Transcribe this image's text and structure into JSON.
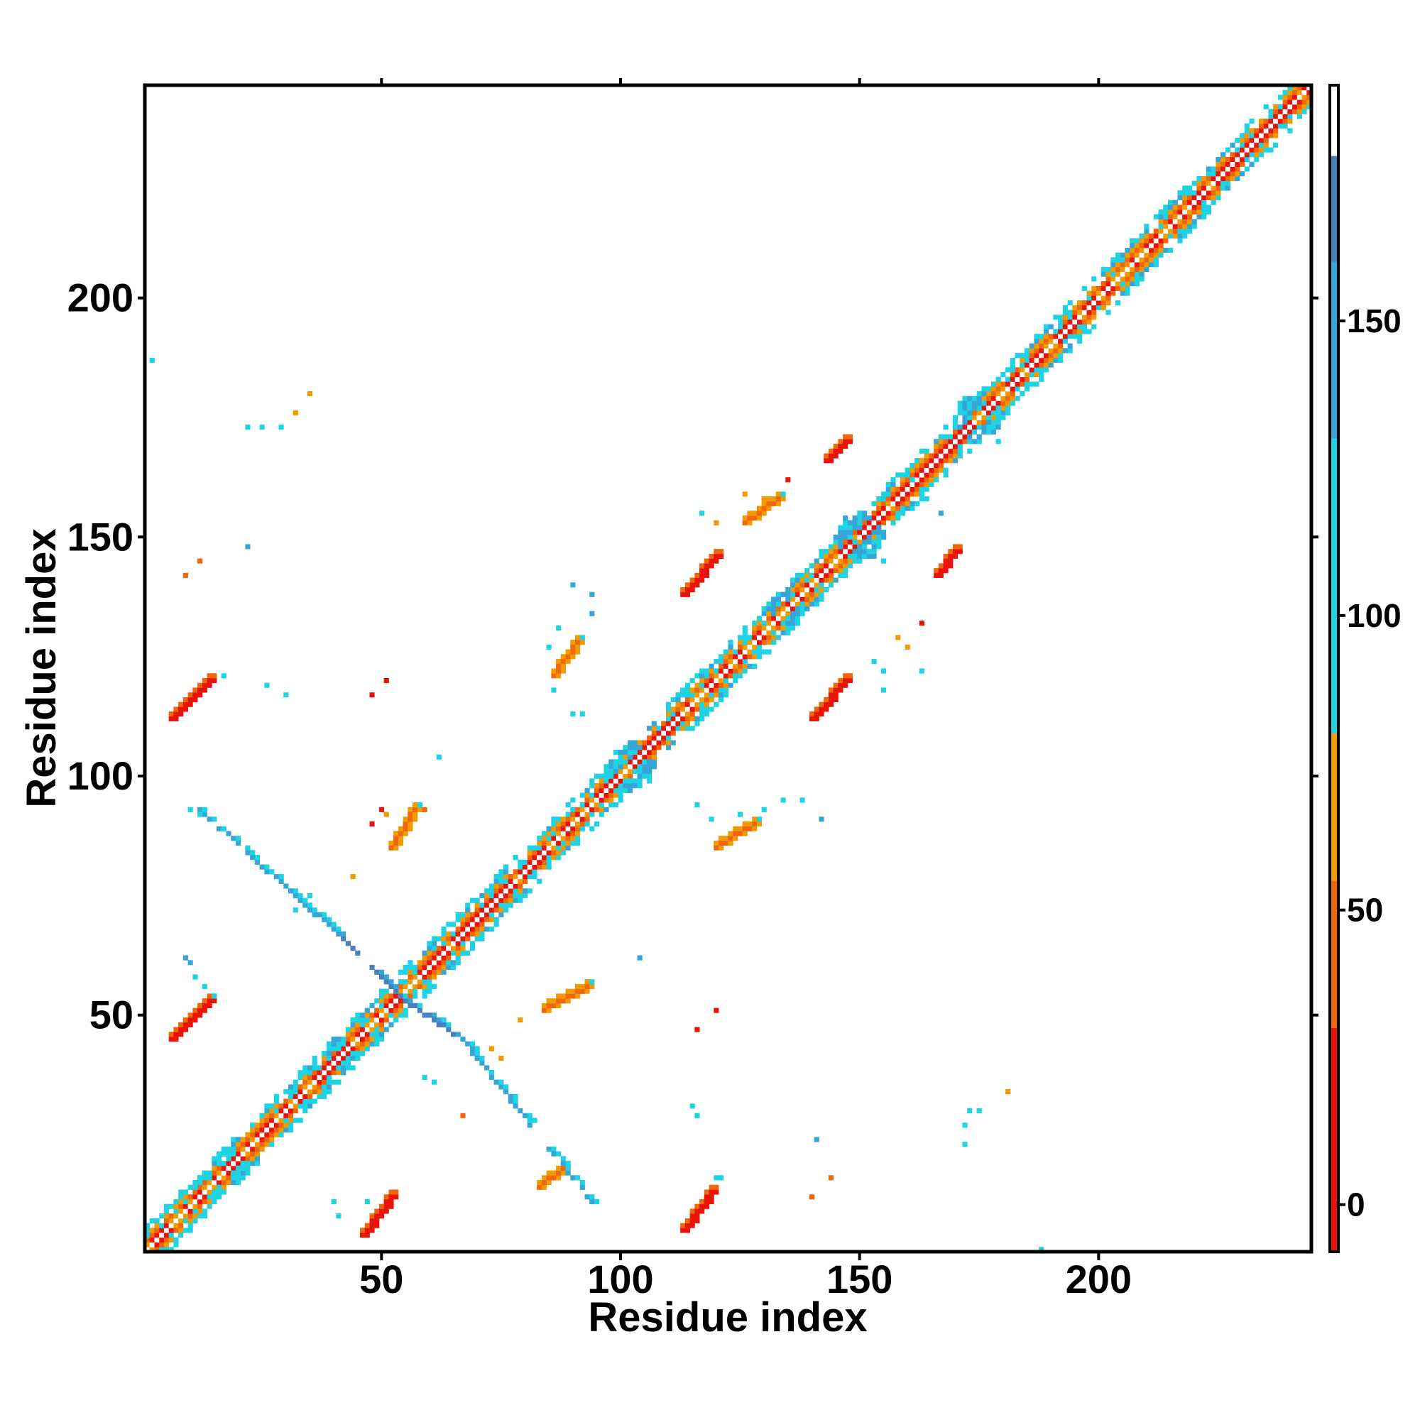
{
  "chart_data": {
    "type": "heatmap",
    "title": "",
    "xlabel": "Residue index",
    "ylabel": "Residue index",
    "xlim": [
      1,
      244
    ],
    "ylim": [
      1,
      244
    ],
    "x_ticks": [
      50,
      100,
      150,
      200
    ],
    "y_ticks": [
      50,
      100,
      150,
      200
    ],
    "x_tick_labels": [
      "50",
      "100",
      "150",
      "200"
    ],
    "y_tick_labels": [
      "50",
      "100",
      "150",
      "200"
    ],
    "grid": false,
    "colorbar": {
      "position": "right",
      "range": [
        -8,
        190
      ],
      "ticks": [
        0,
        50,
        100,
        150
      ],
      "tick_labels": [
        "0",
        "50",
        "100",
        "150"
      ],
      "bands": [
        {
          "from": -8,
          "to": 30,
          "color": "#e8140c"
        },
        {
          "from": 30,
          "to": 55,
          "color": "#f0660c"
        },
        {
          "from": 55,
          "to": 80,
          "color": "#f39a00"
        },
        {
          "from": 80,
          "to": 130,
          "color": "#1ed3e3"
        },
        {
          "from": 130,
          "to": 160,
          "color": "#36a6d8"
        },
        {
          "from": 160,
          "to": 178,
          "color": "#4a7fbd"
        },
        {
          "from": 178,
          "to": 190,
          "color": "#ffffff"
        }
      ]
    },
    "features": [
      {
        "kind": "diagonal",
        "from": 1,
        "to": 244
      },
      {
        "kind": "hbond",
        "x1": 46,
        "y1": 4,
        "x2": 52,
        "y2": 12,
        "value": 8
      },
      {
        "kind": "hbond",
        "x1": 113,
        "y1": 5,
        "x2": 119,
        "y2": 13,
        "value": 8
      },
      {
        "kind": "hbond",
        "x1": 6,
        "y1": 45,
        "x2": 14,
        "y2": 53,
        "value": 8
      },
      {
        "kind": "hbond",
        "x1": 6,
        "y1": 112,
        "x2": 14,
        "y2": 120,
        "value": 8
      },
      {
        "kind": "hbond",
        "x1": 113,
        "y1": 138,
        "x2": 120,
        "y2": 146,
        "value": 8
      },
      {
        "kind": "hbond",
        "x1": 140,
        "y1": 112,
        "x2": 147,
        "y2": 120,
        "value": 8
      },
      {
        "kind": "hbond",
        "x1": 143,
        "y1": 166,
        "x2": 147,
        "y2": 170,
        "value": 8
      },
      {
        "kind": "hbond",
        "x1": 166,
        "y1": 142,
        "x2": 170,
        "y2": 147,
        "value": 8
      },
      {
        "kind": "hbond",
        "x1": 84,
        "y1": 51,
        "x2": 93,
        "y2": 56,
        "value": 40
      },
      {
        "kind": "hbond",
        "x1": 52,
        "y1": 85,
        "x2": 57,
        "y2": 93,
        "value": 40
      },
      {
        "kind": "hbond",
        "x1": 120,
        "y1": 85,
        "x2": 128,
        "y2": 90,
        "value": 40
      },
      {
        "kind": "hbond",
        "x1": 86,
        "y1": 121,
        "x2": 91,
        "y2": 128,
        "value": 40
      },
      {
        "kind": "hbond",
        "x1": 126,
        "y1": 153,
        "x2": 133,
        "y2": 158,
        "value": 40
      },
      {
        "kind": "hbond",
        "x1": 83,
        "y1": 14,
        "x2": 88,
        "y2": 18,
        "value": 40
      },
      {
        "kind": "arm",
        "x1": 55,
        "y1": 53,
        "x2": 41,
        "y2": 67,
        "value": 165
      },
      {
        "kind": "arm",
        "x1": 55,
        "y1": 53,
        "x2": 67,
        "y2": 45,
        "value": 165
      },
      {
        "kind": "arm",
        "x1": 41,
        "y1": 67,
        "x2": 12,
        "y2": 93,
        "value": 145
      },
      {
        "kind": "arm",
        "x1": 67,
        "y1": 45,
        "x2": 94,
        "y2": 11,
        "value": 145
      },
      {
        "kind": "blob",
        "x": 102,
        "y": 102,
        "size": 5,
        "value": 120
      },
      {
        "kind": "blob",
        "x": 175,
        "y": 175,
        "size": 5,
        "value": 120
      },
      {
        "kind": "blob",
        "x": 150,
        "y": 150,
        "size": 5,
        "value": 120
      },
      {
        "kind": "blob",
        "x": 42,
        "y": 42,
        "size": 4,
        "value": 120
      },
      {
        "kind": "blob",
        "x": 135,
        "y": 135,
        "size": 4,
        "value": 120
      },
      {
        "kind": "blob",
        "x": 14,
        "y": 14,
        "size": 3,
        "value": 100
      },
      {
        "kind": "blob",
        "x": 19,
        "y": 19,
        "size": 3,
        "value": 100
      }
    ],
    "scatter_points": [
      [
        2,
        187,
        110
      ],
      [
        35,
        180,
        60
      ],
      [
        32,
        176,
        60
      ],
      [
        22,
        173,
        110
      ],
      [
        25,
        173,
        110
      ],
      [
        29,
        173,
        110
      ],
      [
        22,
        148,
        150
      ],
      [
        12,
        145,
        40
      ],
      [
        9,
        142,
        40
      ],
      [
        17,
        121,
        110
      ],
      [
        26,
        119,
        110
      ],
      [
        30,
        117,
        110
      ],
      [
        51,
        120,
        20
      ],
      [
        48,
        117,
        20
      ],
      [
        62,
        104,
        110
      ],
      [
        10,
        93,
        110
      ],
      [
        12,
        92,
        110
      ],
      [
        50,
        93,
        20
      ],
      [
        48,
        90,
        20
      ],
      [
        51,
        92,
        60
      ],
      [
        59,
        93,
        40
      ],
      [
        44,
        79,
        60
      ],
      [
        35,
        75,
        110
      ],
      [
        32,
        72,
        110
      ],
      [
        9,
        62,
        150
      ],
      [
        10,
        61,
        150
      ],
      [
        11,
        58,
        110
      ],
      [
        13,
        56,
        110
      ],
      [
        15,
        54,
        110
      ],
      [
        104,
        62,
        150
      ],
      [
        73,
        43,
        60
      ],
      [
        75,
        41,
        60
      ],
      [
        79,
        49,
        60
      ],
      [
        59,
        37,
        110
      ],
      [
        61,
        36,
        110
      ],
      [
        67,
        29,
        40
      ],
      [
        115,
        31,
        110
      ],
      [
        116,
        29,
        110
      ],
      [
        121,
        16,
        110
      ],
      [
        120,
        16,
        110
      ],
      [
        144,
        16,
        40
      ],
      [
        140,
        12,
        40
      ],
      [
        141,
        24,
        150
      ],
      [
        173,
        30,
        110
      ],
      [
        175,
        30,
        110
      ],
      [
        181,
        34,
        60
      ],
      [
        172,
        27,
        110
      ],
      [
        172,
        23,
        110
      ],
      [
        188,
        1,
        110
      ],
      [
        40,
        11,
        110
      ],
      [
        41,
        8,
        110
      ],
      [
        47,
        11,
        110
      ],
      [
        120,
        51,
        20
      ],
      [
        116,
        47,
        20
      ],
      [
        90,
        140,
        150
      ],
      [
        94,
        138,
        150
      ],
      [
        94,
        134,
        150
      ],
      [
        87,
        131,
        110
      ],
      [
        85,
        127,
        110
      ],
      [
        86,
        118,
        110
      ],
      [
        90,
        113,
        110
      ],
      [
        92,
        113,
        110
      ],
      [
        116,
        94,
        110
      ],
      [
        119,
        91,
        110
      ],
      [
        125,
        92,
        110
      ],
      [
        130,
        93,
        110
      ],
      [
        134,
        95,
        110
      ],
      [
        138,
        95,
        110
      ],
      [
        142,
        91,
        150
      ],
      [
        117,
        155,
        110
      ],
      [
        120,
        153,
        60
      ],
      [
        126,
        159,
        60
      ],
      [
        130,
        158,
        60
      ],
      [
        135,
        162,
        20
      ],
      [
        149,
        149,
        110
      ],
      [
        152,
        147,
        110
      ],
      [
        155,
        145,
        110
      ],
      [
        161,
        162,
        110
      ],
      [
        164,
        158,
        110
      ],
      [
        167,
        155,
        150
      ],
      [
        163,
        132,
        20
      ],
      [
        158,
        129,
        60
      ],
      [
        160,
        127,
        60
      ],
      [
        155,
        122,
        110
      ],
      [
        155,
        118,
        110
      ],
      [
        153,
        124,
        110
      ],
      [
        163,
        122,
        110
      ],
      [
        170,
        174,
        110
      ],
      [
        179,
        170,
        110
      ]
    ]
  }
}
